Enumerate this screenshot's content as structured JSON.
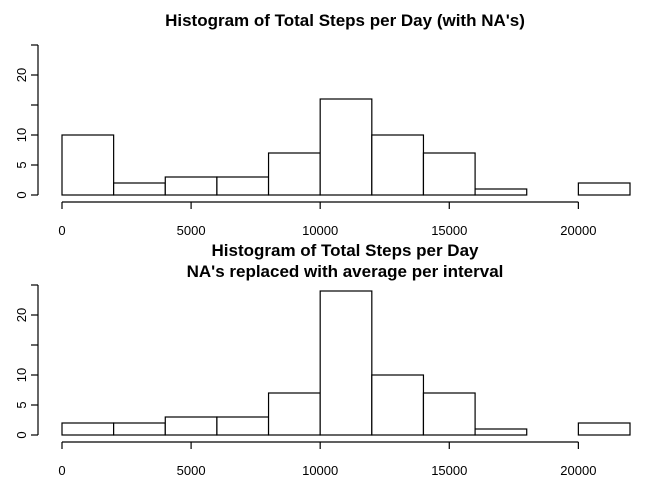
{
  "chart_data": [
    {
      "type": "bar",
      "title": "Histogram of Total Steps per Day (with NA's)",
      "xlabel": "",
      "ylabel": "",
      "bin_edges": [
        0,
        2000,
        4000,
        6000,
        8000,
        10000,
        12000,
        14000,
        16000,
        18000,
        20000,
        22000
      ],
      "values": [
        10,
        2,
        3,
        3,
        7,
        16,
        10,
        7,
        1,
        0,
        2
      ],
      "xlim": [
        0,
        22000
      ],
      "ylim": [
        0,
        25
      ],
      "x_ticks": [
        0,
        5000,
        10000,
        15000,
        20000
      ],
      "x_tick_labels": [
        "0",
        "5000",
        "10000",
        "15000",
        "20000"
      ],
      "y_ticks": [
        0,
        5,
        10,
        15,
        20,
        25
      ],
      "y_tick_labels": [
        "0",
        "5",
        "10",
        "",
        "20",
        ""
      ],
      "grid": false
    },
    {
      "type": "bar",
      "title": "Histogram of Total Steps per Day\nNA's replaced with average per interval",
      "title_lines": [
        "Histogram of Total Steps per Day",
        "NA's replaced with average per interval"
      ],
      "xlabel": "",
      "ylabel": "",
      "bin_edges": [
        0,
        2000,
        4000,
        6000,
        8000,
        10000,
        12000,
        14000,
        16000,
        18000,
        20000,
        22000
      ],
      "values": [
        2,
        2,
        3,
        3,
        7,
        24,
        10,
        7,
        1,
        0,
        2
      ],
      "xlim": [
        0,
        22000
      ],
      "ylim": [
        0,
        25
      ],
      "x_ticks": [
        0,
        5000,
        10000,
        15000,
        20000
      ],
      "x_tick_labels": [
        "0",
        "5000",
        "10000",
        "15000",
        "20000"
      ],
      "y_ticks": [
        0,
        5,
        10,
        15,
        20,
        25
      ],
      "y_tick_labels": [
        "0",
        "5",
        "10",
        "",
        "20",
        ""
      ],
      "grid": false
    }
  ]
}
